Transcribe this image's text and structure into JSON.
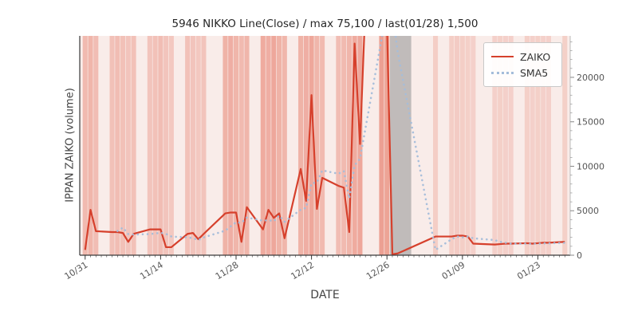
{
  "title": "5946 NIKKO Line(Close) / max 75,100 / last(01/28) 1,500",
  "xlabel": "DATE",
  "ylabel": "IPPAN ZAIKO (volume)",
  "legend": {
    "zaiko": "ZAIKO",
    "sma5": "SMA5"
  },
  "colors": {
    "zaiko_line": "#d6402c",
    "sma5_line": "#a4bdda",
    "band": "#e2604a",
    "gray_band": "#9c9c9c",
    "plot_bg": "#f9ece9",
    "spine_dark": "#3a3a3a",
    "spine_light": "#bbbbbb",
    "tick_label": "#555555"
  },
  "chart_data": {
    "type": "line",
    "title": "5946 NIKKO Line(Close) / max 75,100 / last(01/28) 1,500",
    "xlabel": "DATE",
    "ylabel": "IPPAN ZAIKO (volume)",
    "legend_position": "upper right",
    "legend_entries": [
      "ZAIKO",
      "SMA5"
    ],
    "ylim": [
      0,
      24660
    ],
    "yticks": [
      0,
      5000,
      10000,
      15000,
      20000
    ],
    "xlim_days": [
      -1,
      90
    ],
    "xticks": [
      {
        "label": "10/31",
        "day": 0
      },
      {
        "label": "11/14",
        "day": 14
      },
      {
        "label": "11/28",
        "day": 28
      },
      {
        "label": "12/12",
        "day": 42
      },
      {
        "label": "12/26",
        "day": 56
      },
      {
        "label": "01/09",
        "day": 70
      },
      {
        "label": "01/23",
        "day": 84
      }
    ],
    "dates": [
      "10/31",
      "11/01",
      "11/02",
      "11/05",
      "11/06",
      "11/07",
      "11/08",
      "11/09",
      "11/12",
      "11/13",
      "11/14",
      "11/15",
      "11/16",
      "11/19",
      "11/20",
      "11/21",
      "11/22",
      "11/26",
      "11/27",
      "11/28",
      "11/29",
      "11/30",
      "12/03",
      "12/04",
      "12/05",
      "12/06",
      "12/07",
      "12/10",
      "12/11",
      "12/12",
      "12/13",
      "12/14",
      "12/17",
      "12/18",
      "12/19",
      "12/20",
      "12/21",
      "12/25",
      "12/26",
      "12/27",
      "12/28",
      "01/04",
      "01/07",
      "01/08",
      "01/09",
      "01/10",
      "01/11",
      "01/15",
      "01/16",
      "01/17",
      "01/18",
      "01/21",
      "01/22",
      "01/23",
      "01/24",
      "01/25",
      "01/28"
    ],
    "day_offsets": [
      0,
      1,
      2,
      5,
      6,
      7,
      8,
      9,
      12,
      13,
      14,
      15,
      16,
      19,
      20,
      21,
      22,
      26,
      27,
      28,
      29,
      30,
      33,
      34,
      35,
      36,
      37,
      40,
      41,
      42,
      43,
      44,
      47,
      48,
      49,
      50,
      51,
      55,
      56,
      57,
      58,
      65,
      68,
      69,
      70,
      71,
      72,
      76,
      77,
      78,
      79,
      82,
      83,
      84,
      85,
      86,
      89
    ],
    "series": [
      {
        "name": "ZAIKO",
        "style": "solid",
        "values": [
          600,
          5100,
          2700,
          2600,
          2600,
          2500,
          1500,
          2400,
          2900,
          2900,
          2900,
          900,
          900,
          2400,
          2500,
          1800,
          2400,
          4700,
          4800,
          4800,
          1500,
          5400,
          2900,
          5100,
          4200,
          4700,
          1900,
          9700,
          6100,
          18000,
          5200,
          8700,
          7800,
          7600,
          2600,
          23800,
          12500,
          75100,
          26000,
          100,
          200,
          2100,
          2100,
          2200,
          2200,
          2100,
          1300,
          1200,
          1250,
          1300,
          1300,
          1350,
          1300,
          1350,
          1400,
          1400,
          1500
        ]
      },
      {
        "name": "SMA5",
        "style": "dotted",
        "values": [
          null,
          null,
          null,
          null,
          2720,
          3100,
          2380,
          2320,
          2380,
          2440,
          2520,
          2400,
          2100,
          2000,
          1920,
          1700,
          2000,
          2760,
          3240,
          3700,
          3640,
          4240,
          3880,
          3940,
          3820,
          4460,
          3760,
          5120,
          5320,
          8080,
          8180,
          9540,
          9160,
          9460,
          6380,
          10100,
          10860,
          24320,
          28000,
          27500,
          22780,
          600,
          1800,
          2100,
          2000,
          2100,
          1900,
          1700,
          1500,
          1400,
          1300,
          1300,
          1280,
          1300,
          1320,
          1340,
          1390
        ]
      }
    ],
    "band_heat": [
      0.5,
      0.55,
      0.45,
      0.4,
      0.45,
      0.4,
      0.35,
      0.4,
      0.35,
      0.4,
      0.45,
      0.35,
      0.3,
      0.4,
      0.35,
      0.3,
      0.35,
      0.6,
      0.65,
      0.55,
      0.5,
      0.55,
      0.7,
      0.65,
      0.75,
      0.6,
      0.55,
      0.6,
      0.65,
      0.75,
      0.55,
      0.5,
      0.45,
      0.5,
      0.55,
      0.7,
      0.75,
      0.85,
      0.8,
      -1,
      -1,
      0.22,
      0.22,
      0.25,
      0.22,
      0.2,
      0.18,
      0.18,
      0.2,
      0.18,
      0.18,
      0.2,
      0.18,
      0.2,
      0.18,
      0.18,
      0.2
    ],
    "gray_span_days": [
      56.55,
      60.5
    ],
    "max_note": "max 75,100",
    "last_note": "last(01/28) 1,500"
  }
}
